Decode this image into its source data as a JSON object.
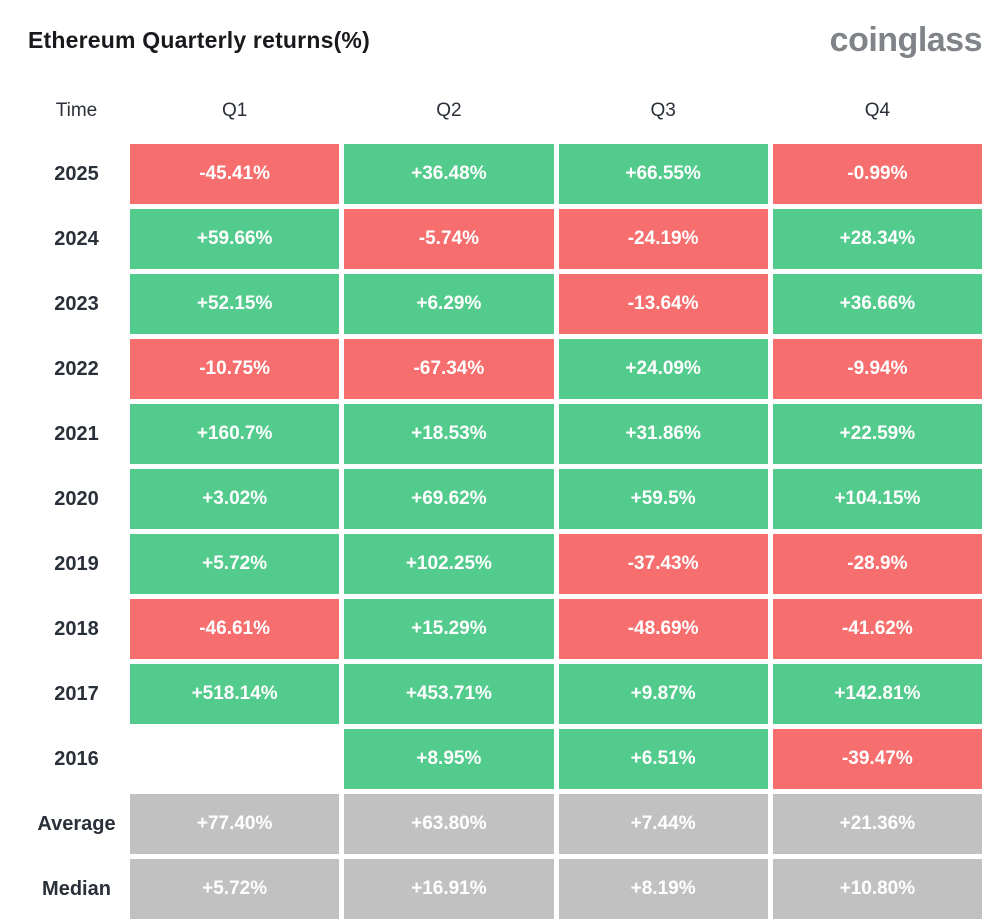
{
  "header": {
    "title": "Ethereum Quarterly returns(%)",
    "logo": "coinglass"
  },
  "table": {
    "columns": [
      "Time",
      "Q1",
      "Q2",
      "Q3",
      "Q4"
    ],
    "rows": [
      {
        "label": "2025",
        "cells": [
          {
            "text": "-45.41%",
            "type": "negative"
          },
          {
            "text": "+36.48%",
            "type": "positive"
          },
          {
            "text": "+66.55%",
            "type": "positive"
          },
          {
            "text": "-0.99%",
            "type": "negative"
          }
        ]
      },
      {
        "label": "2024",
        "cells": [
          {
            "text": "+59.66%",
            "type": "positive"
          },
          {
            "text": "-5.74%",
            "type": "negative"
          },
          {
            "text": "-24.19%",
            "type": "negative"
          },
          {
            "text": "+28.34%",
            "type": "positive"
          }
        ]
      },
      {
        "label": "2023",
        "cells": [
          {
            "text": "+52.15%",
            "type": "positive"
          },
          {
            "text": "+6.29%",
            "type": "positive"
          },
          {
            "text": "-13.64%",
            "type": "negative"
          },
          {
            "text": "+36.66%",
            "type": "positive"
          }
        ]
      },
      {
        "label": "2022",
        "cells": [
          {
            "text": "-10.75%",
            "type": "negative"
          },
          {
            "text": "-67.34%",
            "type": "negative"
          },
          {
            "text": "+24.09%",
            "type": "positive"
          },
          {
            "text": "-9.94%",
            "type": "negative"
          }
        ]
      },
      {
        "label": "2021",
        "cells": [
          {
            "text": "+160.7%",
            "type": "positive"
          },
          {
            "text": "+18.53%",
            "type": "positive"
          },
          {
            "text": "+31.86%",
            "type": "positive"
          },
          {
            "text": "+22.59%",
            "type": "positive"
          }
        ]
      },
      {
        "label": "2020",
        "cells": [
          {
            "text": "+3.02%",
            "type": "positive"
          },
          {
            "text": "+69.62%",
            "type": "positive"
          },
          {
            "text": "+59.5%",
            "type": "positive"
          },
          {
            "text": "+104.15%",
            "type": "positive"
          }
        ]
      },
      {
        "label": "2019",
        "cells": [
          {
            "text": "+5.72%",
            "type": "positive"
          },
          {
            "text": "+102.25%",
            "type": "positive"
          },
          {
            "text": "-37.43%",
            "type": "negative"
          },
          {
            "text": "-28.9%",
            "type": "negative"
          }
        ]
      },
      {
        "label": "2018",
        "cells": [
          {
            "text": "-46.61%",
            "type": "negative"
          },
          {
            "text": "+15.29%",
            "type": "positive"
          },
          {
            "text": "-48.69%",
            "type": "negative"
          },
          {
            "text": "-41.62%",
            "type": "negative"
          }
        ]
      },
      {
        "label": "2017",
        "cells": [
          {
            "text": "+518.14%",
            "type": "positive"
          },
          {
            "text": "+453.71%",
            "type": "positive"
          },
          {
            "text": "+9.87%",
            "type": "positive"
          },
          {
            "text": "+142.81%",
            "type": "positive"
          }
        ]
      },
      {
        "label": "2016",
        "cells": [
          {
            "text": "",
            "type": "empty"
          },
          {
            "text": "+8.95%",
            "type": "positive"
          },
          {
            "text": "+6.51%",
            "type": "positive"
          },
          {
            "text": "-39.47%",
            "type": "negative"
          }
        ]
      },
      {
        "label": "Average",
        "cells": [
          {
            "text": "+77.40%",
            "type": "neutral"
          },
          {
            "text": "+63.80%",
            "type": "neutral"
          },
          {
            "text": "+7.44%",
            "type": "neutral"
          },
          {
            "text": "+21.36%",
            "type": "neutral"
          }
        ]
      },
      {
        "label": "Median",
        "cells": [
          {
            "text": "+5.72%",
            "type": "neutral"
          },
          {
            "text": "+16.91%",
            "type": "neutral"
          },
          {
            "text": "+8.19%",
            "type": "neutral"
          },
          {
            "text": "+10.80%",
            "type": "neutral"
          }
        ]
      }
    ]
  },
  "colors": {
    "positive": "#52CB8D",
    "negative": "#F76E6E",
    "neutral": "#C1C1C1",
    "cell_text": "#FFFFFF",
    "label_text": "#2A3039",
    "title_text": "#17191C",
    "logo_text": "#808488"
  },
  "chart_data": {
    "type": "heatmap",
    "title": "Ethereum Quarterly returns(%)",
    "columns": [
      "Q1",
      "Q2",
      "Q3",
      "Q4"
    ],
    "rows": [
      "2025",
      "2024",
      "2023",
      "2022",
      "2021",
      "2020",
      "2019",
      "2018",
      "2017",
      "2016",
      "Average",
      "Median"
    ],
    "values": [
      [
        -45.41,
        36.48,
        66.55,
        -0.99
      ],
      [
        59.66,
        -5.74,
        -24.19,
        28.34
      ],
      [
        52.15,
        6.29,
        -13.64,
        36.66
      ],
      [
        -10.75,
        -67.34,
        24.09,
        -9.94
      ],
      [
        160.7,
        18.53,
        31.86,
        22.59
      ],
      [
        3.02,
        69.62,
        59.5,
        104.15
      ],
      [
        5.72,
        102.25,
        -37.43,
        -28.9
      ],
      [
        -46.61,
        15.29,
        -48.69,
        -41.62
      ],
      [
        518.14,
        453.71,
        9.87,
        142.81
      ],
      [
        null,
        8.95,
        6.51,
        -39.47
      ],
      [
        77.4,
        63.8,
        7.44,
        21.36
      ],
      [
        5.72,
        16.91,
        8.19,
        10.8
      ]
    ],
    "unit": "%",
    "legend_position": "none",
    "color_rule": "green = positive return, red = negative return, gray = summary rows (Average/Median), blank = no data"
  }
}
